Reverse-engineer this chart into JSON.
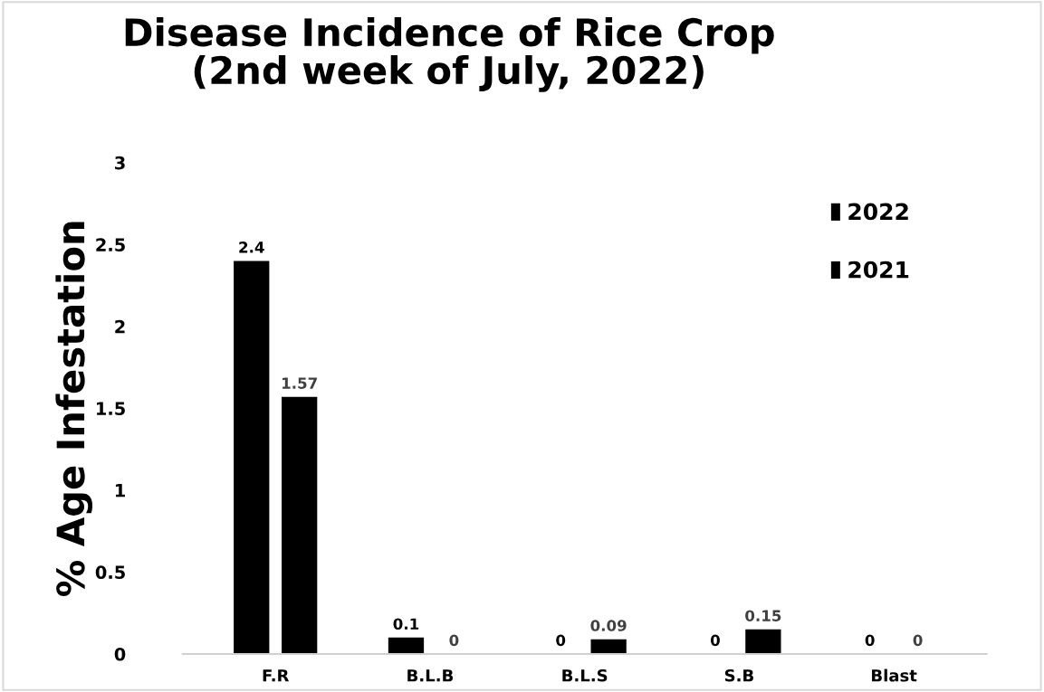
{
  "chart_data": {
    "type": "bar",
    "title": "Disease Incidence of Rice Crop\n(2nd week of July, 2022)",
    "ylabel": "% Age Infestation",
    "categories": [
      "F.R",
      "B.L.B",
      "B.L.S",
      "S.B",
      "Blast"
    ],
    "series": [
      {
        "name": "2022",
        "color": "#000000",
        "values": [
          2.4,
          0.1,
          0,
          0,
          0
        ]
      },
      {
        "name": "2021",
        "color": "#000000",
        "values": [
          1.57,
          0,
          0.09,
          0.15,
          0
        ]
      }
    ],
    "ylim": [
      0,
      3
    ],
    "yticks": [
      0,
      0.5,
      1,
      1.5,
      2,
      2.5,
      3
    ],
    "grid": false,
    "legend": "top right",
    "data_labels": true
  }
}
